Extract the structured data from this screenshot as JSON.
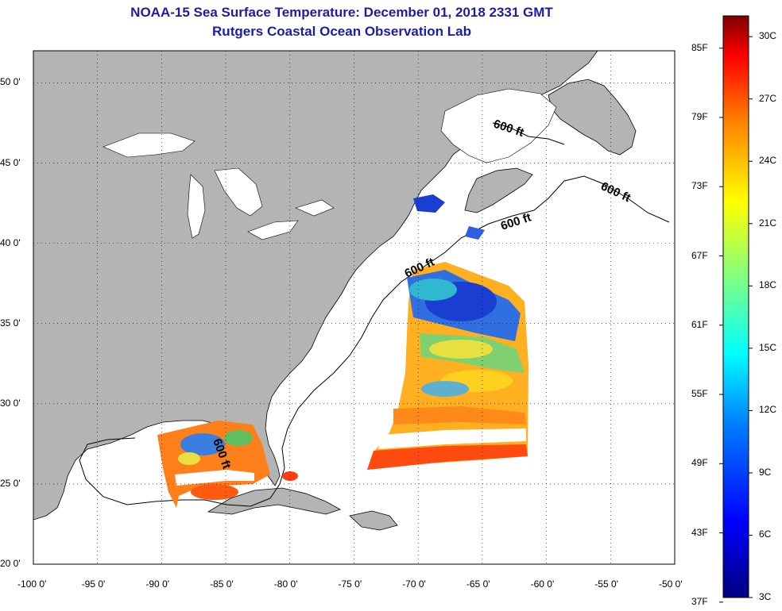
{
  "title": "NOAA-15 Sea Surface Temperature:  December 01, 2018 2331 GMT",
  "subtitle": "Rutgers Coastal Ocean Observation Lab",
  "map": {
    "lon_range": [
      -100,
      -50
    ],
    "lat_range": [
      20,
      52
    ],
    "lon_ticks": [
      "-100 0'",
      "-95 0'",
      "-90 0'",
      "-85 0'",
      "-80 0'",
      "-75 0'",
      "-70 0'",
      "-65 0'",
      "-60 0'",
      "-55 0'",
      "-50 0'"
    ],
    "lat_ticks": [
      "20 0'",
      "25 0'",
      "30 0'",
      "35 0'",
      "40 0'",
      "45 0'",
      "50 0'"
    ],
    "grid": "dotted",
    "land_color": "#b4b4b4",
    "ocean_color": "#ffffff",
    "contour_label": "600 ft",
    "contour_labels": [
      "600 ft",
      "600 ft",
      "600 ft",
      "600 ft",
      "600 ft"
    ]
  },
  "colorbar": {
    "fahrenheit_labels": [
      "85F",
      "79F",
      "73F",
      "67F",
      "61F",
      "55F",
      "49F",
      "43F",
      "37F"
    ],
    "celsius_labels": [
      "30C",
      "27C",
      "24C",
      "21C",
      "18C",
      "15C",
      "12C",
      "9C",
      "6C",
      "3C"
    ],
    "celsius_range": [
      3,
      31
    ],
    "colors": [
      "#00007f",
      "#0000ff",
      "#007fff",
      "#00ffff",
      "#7fff7f",
      "#ffff00",
      "#ff7f00",
      "#ff0000",
      "#7f0000"
    ]
  }
}
